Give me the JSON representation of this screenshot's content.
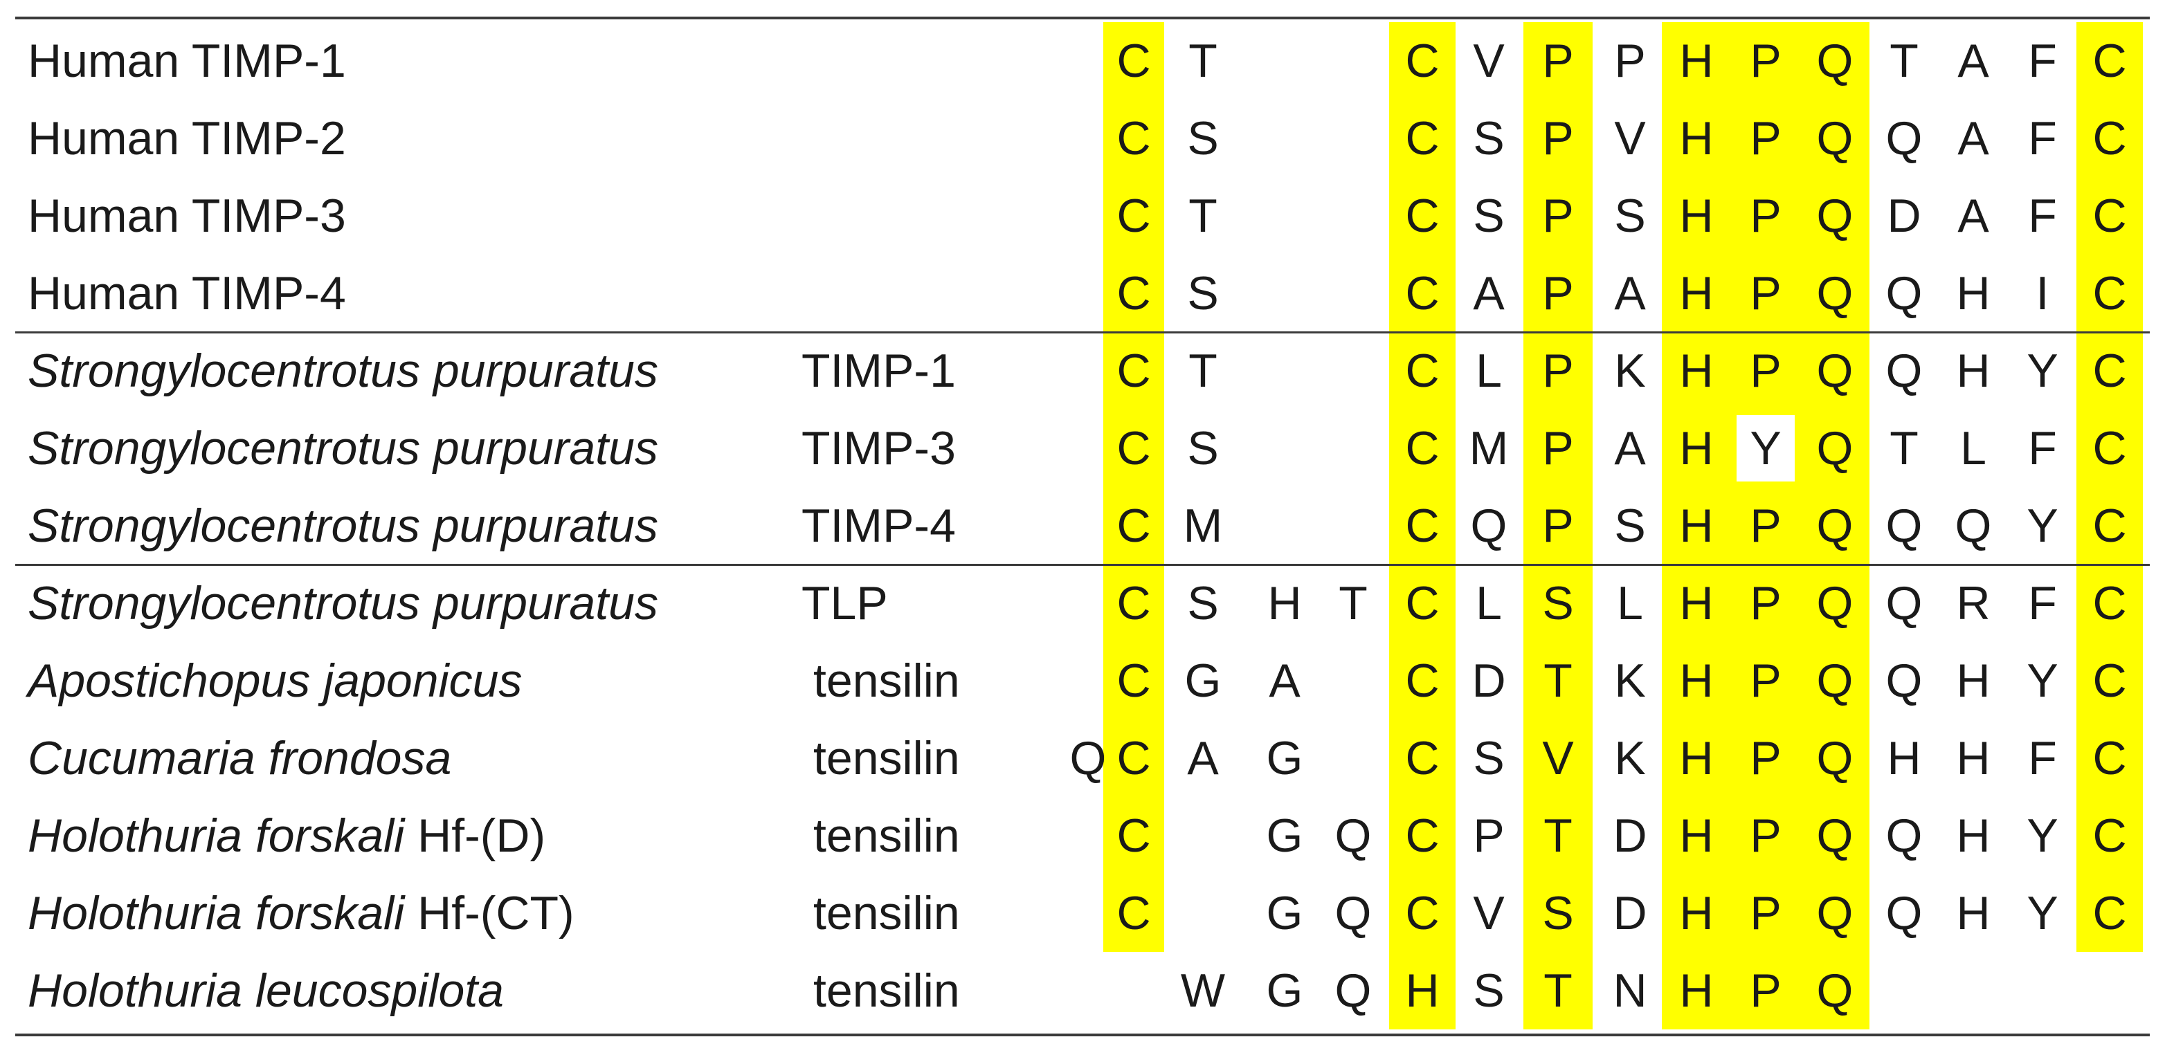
{
  "figure": {
    "title": "",
    "highlight_color": "#ffff00",
    "highlighted_residue_columns": [
      1,
      5,
      7,
      9,
      10,
      11,
      15
    ]
  },
  "rows": [
    {
      "name": "Human TIMP-1",
      "italic": "",
      "suffix": "",
      "residues": [
        "",
        "C",
        "T",
        "",
        "",
        "C",
        "V",
        "P",
        "P",
        "H",
        "P",
        "Q",
        "T",
        "A",
        "F",
        "C"
      ]
    },
    {
      "name": "Human TIMP-2",
      "italic": "",
      "suffix": "",
      "residues": [
        "",
        "C",
        "S",
        "",
        "",
        "C",
        "S",
        "P",
        "V",
        "H",
        "P",
        "Q",
        "Q",
        "A",
        "F",
        "C"
      ]
    },
    {
      "name": "Human TIMP-3",
      "italic": "",
      "suffix": "",
      "residues": [
        "",
        "C",
        "T",
        "",
        "",
        "C",
        "S",
        "P",
        "S",
        "H",
        "P",
        "Q",
        "D",
        "A",
        "F",
        "C"
      ]
    },
    {
      "name": "Human TIMP-4",
      "italic": "",
      "suffix": "",
      "residues": [
        "",
        "C",
        "S",
        "",
        "",
        "C",
        "A",
        "P",
        "A",
        "H",
        "P",
        "Q",
        "Q",
        "H",
        "I",
        "C"
      ]
    },
    {
      "name": "",
      "italic": "Strongylocentrotus purpuratus",
      "suffix": "TIMP-1",
      "residues": [
        "",
        "C",
        "T",
        "",
        "",
        "C",
        "L",
        "P",
        "K",
        "H",
        "P",
        "Q",
        "Q",
        "H",
        "Y",
        "C"
      ]
    },
    {
      "name": "",
      "italic": "Strongylocentrotus purpuratus",
      "suffix": "TIMP-3",
      "residues": [
        "",
        "C",
        "S",
        "",
        "",
        "C",
        "M",
        "P",
        "A",
        "H",
        "Y",
        "Q",
        "T",
        "L",
        "F",
        "C"
      ],
      "unhighlighted_column": 10
    },
    {
      "name": "",
      "italic": "Strongylocentrotus purpuratus",
      "suffix": "TIMP-4",
      "residues": [
        "",
        "C",
        "M",
        "",
        "",
        "C",
        "Q",
        "P",
        "S",
        "H",
        "P",
        "Q",
        "Q",
        "Q",
        "Y",
        "C"
      ]
    },
    {
      "name": "",
      "italic": "Strongylocentrotus purpuratus",
      "suffix": "TLP",
      "residues": [
        "",
        "C",
        "S",
        "H",
        "T",
        "C",
        "L",
        "S",
        "L",
        "H",
        "P",
        "Q",
        "Q",
        "R",
        "F",
        "C"
      ]
    },
    {
      "name": "",
      "italic": "Apostichopus japonicus",
      "suffix": "tensilin",
      "residues": [
        "",
        "C",
        "G",
        "A",
        "",
        "C",
        "D",
        "T",
        "K",
        "H",
        "P",
        "Q",
        "Q",
        "H",
        "Y",
        "C"
      ]
    },
    {
      "name": "",
      "italic": "Cucumaria frondosa",
      "suffix": "tensilin",
      "residues": [
        "Q",
        "C",
        "A",
        "G",
        "",
        "C",
        "S",
        "V",
        "K",
        "H",
        "P",
        "Q",
        "H",
        "H",
        "F",
        "C"
      ]
    },
    {
      "name": "",
      "italic": "Holothuria forskali",
      "tag": " Hf-(D)",
      "suffix": "tensilin",
      "residues": [
        "",
        "C",
        "",
        "G",
        "Q",
        "C",
        "P",
        "T",
        "D",
        "H",
        "P",
        "Q",
        "Q",
        "H",
        "Y",
        "C"
      ]
    },
    {
      "name": "",
      "italic": "Holothuria forskali",
      "tag": " Hf-(CT)",
      "suffix": "tensilin",
      "residues": [
        "",
        "C",
        "",
        "G",
        "Q",
        "C",
        "V",
        "S",
        "D",
        "H",
        "P",
        "Q",
        "Q",
        "H",
        "Y",
        "C"
      ]
    },
    {
      "name": "",
      "italic": "Holothuria leucospilota",
      "suffix": "tensilin",
      "residues": [
        "",
        "",
        "W",
        "G",
        "Q",
        "H",
        "S",
        "T",
        "N",
        "H",
        "P",
        "Q",
        "",
        "",
        "",
        ""
      ]
    }
  ]
}
